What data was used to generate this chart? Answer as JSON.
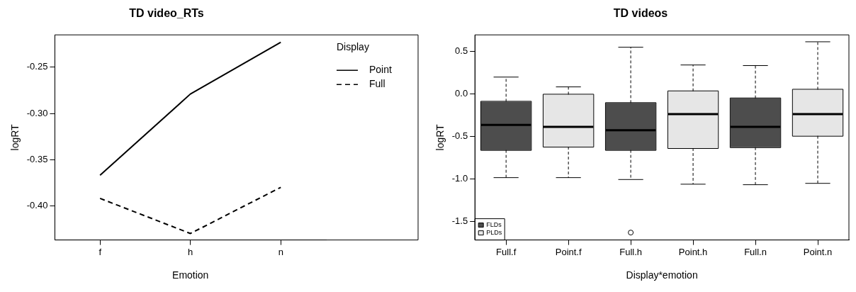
{
  "chart_data": [
    {
      "type": "line",
      "title": "TD video_RTs",
      "xlabel": "Emotion",
      "ylabel": "logRT",
      "legend_title": "Display",
      "categories": [
        "f",
        "h",
        "n"
      ],
      "series": [
        {
          "name": "Point",
          "color": "#000000",
          "line_style": "solid",
          "values": [
            -0.367,
            -0.279,
            -0.223
          ]
        },
        {
          "name": "Full",
          "color": "#000000",
          "line_style": "dashed",
          "values": [
            -0.392,
            -0.43,
            -0.38
          ]
        }
      ],
      "ylim": [
        -0.437,
        -0.215
      ],
      "yticks": [
        -0.25,
        {
          "value": -0.3,
          "label": "-0.30"
        },
        -0.35,
        {
          "value": -0.4,
          "label": "-0.40"
        }
      ],
      "grid": false,
      "legend": "top right",
      "marker": "none"
    },
    {
      "type": "box",
      "title": "TD videos",
      "xlabel": "Display*emotion",
      "ylabel": "logRT",
      "categories": [
        "Full.f",
        "Point.f",
        "Full.h",
        "Point.h",
        "Full.n",
        "Point.n"
      ],
      "series": [
        {
          "name": "FLDs",
          "color": "#4d4d4d",
          "boxes": [
            {
              "low": -0.984,
              "q1": -0.66,
              "median": -0.365,
              "q3": -0.093,
              "high": 0.195
            },
            null,
            {
              "low": -1.006,
              "q1": -0.66,
              "median": -0.429,
              "q3": -0.109,
              "high": 0.545,
              "outliers": [
                -1.628
              ]
            },
            null,
            {
              "low": -1.067,
              "q1": -0.628,
              "median": -0.388,
              "q3": -0.054,
              "high": 0.33
            },
            null
          ]
        },
        {
          "name": "PLDs",
          "color": "#e6e6e6",
          "boxes": [
            null,
            {
              "low": -0.984,
              "q1": -0.622,
              "median": -0.388,
              "q3": -0.01,
              "high": 0.08
            },
            null,
            {
              "low": -1.061,
              "q1": -0.638,
              "median": -0.24,
              "q3": 0.029,
              "high": 0.337
            },
            null,
            {
              "low": -1.051,
              "q1": -0.494,
              "median": -0.24,
              "q3": 0.048,
              "high": 0.609
            }
          ]
        }
      ],
      "ylim": [
        -1.715,
        0.69
      ],
      "yticks": [
        0.5,
        {
          "value": 0,
          "label": "0.0"
        },
        -0.5,
        {
          "value": -1,
          "label": "-1.0"
        },
        -1.5
      ],
      "grid": false,
      "legend": "bottom left"
    }
  ]
}
